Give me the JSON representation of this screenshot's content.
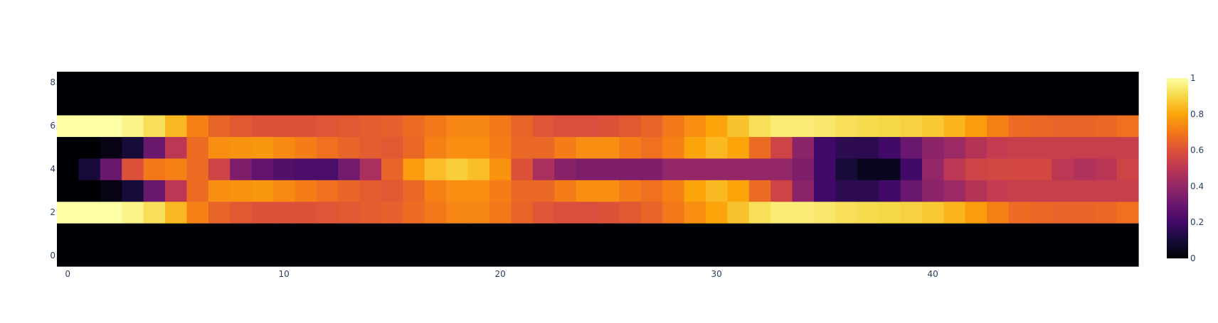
{
  "chart_data": {
    "type": "heatmap",
    "title": "",
    "xlabel": "",
    "ylabel": "",
    "x_range": [
      -0.5,
      49.5
    ],
    "y_range": [
      -0.5,
      8.5
    ],
    "x_ticks": [
      0,
      10,
      20,
      30,
      40
    ],
    "y_ticks": [
      0,
      2,
      4,
      6,
      8
    ],
    "colorscale": "inferno",
    "zmin": 0,
    "zmax": 1,
    "colorbar_ticks": [
      0,
      0.2,
      0.4,
      0.6,
      0.8,
      1
    ],
    "colorbar_stops": [
      [
        0,
        "#000004"
      ],
      [
        0.1,
        "#160b39"
      ],
      [
        0.2,
        "#420a68"
      ],
      [
        0.3,
        "#6a176e"
      ],
      [
        0.4,
        "#932667"
      ],
      [
        0.5,
        "#bc3754"
      ],
      [
        0.6,
        "#dd513a"
      ],
      [
        0.7,
        "#f37819"
      ],
      [
        0.8,
        "#fca50a"
      ],
      [
        0.9,
        "#f6d746"
      ],
      [
        1,
        "#fcffa4"
      ]
    ],
    "rows": [
      {
        "y": 0,
        "values": [
          0,
          0,
          0,
          0,
          0,
          0,
          0,
          0,
          0,
          0,
          0,
          0,
          0,
          0,
          0,
          0,
          0,
          0,
          0,
          0,
          0,
          0,
          0,
          0,
          0,
          0,
          0,
          0,
          0,
          0,
          0,
          0,
          0,
          0,
          0,
          0,
          0,
          0,
          0,
          0,
          0,
          0,
          0,
          0,
          0,
          0,
          0,
          0,
          0,
          0
        ]
      },
      {
        "y": 1,
        "values": [
          0,
          0,
          0,
          0,
          0,
          0,
          0,
          0,
          0,
          0,
          0,
          0,
          0,
          0,
          0,
          0,
          0,
          0,
          0,
          0,
          0,
          0,
          0,
          0,
          0,
          0,
          0,
          0,
          0,
          0,
          0,
          0,
          0,
          0,
          0,
          0,
          0,
          0,
          0,
          0,
          0,
          0,
          0,
          0,
          0,
          0,
          0,
          0,
          0,
          0
        ]
      },
      {
        "y": 2,
        "values": [
          1,
          1,
          1,
          0.97,
          0.92,
          0.84,
          0.72,
          0.65,
          0.62,
          0.6,
          0.6,
          0.6,
          0.61,
          0.62,
          0.63,
          0.64,
          0.67,
          0.7,
          0.73,
          0.73,
          0.7,
          0.65,
          0.61,
          0.59,
          0.59,
          0.6,
          0.62,
          0.65,
          0.7,
          0.75,
          0.8,
          0.86,
          0.92,
          0.95,
          0.95,
          0.94,
          0.92,
          0.91,
          0.9,
          0.89,
          0.87,
          0.83,
          0.78,
          0.72,
          0.67,
          0.66,
          0.65,
          0.65,
          0.66,
          0.68
        ]
      },
      {
        "y": 3,
        "values": [
          0,
          0,
          0.03,
          0.1,
          0.3,
          0.5,
          0.67,
          0.75,
          0.76,
          0.77,
          0.74,
          0.71,
          0.68,
          0.65,
          0.63,
          0.62,
          0.66,
          0.72,
          0.75,
          0.75,
          0.71,
          0.66,
          0.66,
          0.71,
          0.75,
          0.75,
          0.71,
          0.68,
          0.72,
          0.8,
          0.84,
          0.8,
          0.67,
          0.55,
          0.38,
          0.2,
          0.15,
          0.15,
          0.2,
          0.3,
          0.38,
          0.42,
          0.48,
          0.52,
          0.53,
          0.53,
          0.53,
          0.53,
          0.53,
          0.53
        ]
      },
      {
        "y": 4,
        "values": [
          0,
          0.1,
          0.3,
          0.6,
          0.7,
          0.72,
          0.67,
          0.55,
          0.35,
          0.28,
          0.24,
          0.22,
          0.22,
          0.32,
          0.45,
          0.65,
          0.78,
          0.85,
          0.88,
          0.85,
          0.76,
          0.6,
          0.45,
          0.37,
          0.35,
          0.35,
          0.35,
          0.35,
          0.4,
          0.4,
          0.4,
          0.4,
          0.4,
          0.4,
          0.35,
          0.2,
          0.1,
          0.05,
          0.05,
          0.2,
          0.4,
          0.5,
          0.55,
          0.56,
          0.57,
          0.57,
          0.5,
          0.47,
          0.49,
          0.55
        ]
      },
      {
        "y": 5,
        "values": [
          0,
          0,
          0.03,
          0.1,
          0.3,
          0.5,
          0.67,
          0.75,
          0.76,
          0.77,
          0.74,
          0.71,
          0.68,
          0.65,
          0.63,
          0.62,
          0.66,
          0.72,
          0.75,
          0.75,
          0.71,
          0.66,
          0.66,
          0.71,
          0.75,
          0.75,
          0.71,
          0.68,
          0.72,
          0.8,
          0.84,
          0.8,
          0.67,
          0.55,
          0.38,
          0.2,
          0.15,
          0.15,
          0.2,
          0.3,
          0.38,
          0.42,
          0.48,
          0.52,
          0.53,
          0.53,
          0.53,
          0.53,
          0.53,
          0.53
        ]
      },
      {
        "y": 6,
        "values": [
          1,
          1,
          1,
          0.97,
          0.92,
          0.84,
          0.72,
          0.65,
          0.62,
          0.6,
          0.6,
          0.6,
          0.61,
          0.62,
          0.63,
          0.64,
          0.67,
          0.7,
          0.73,
          0.73,
          0.7,
          0.65,
          0.61,
          0.59,
          0.59,
          0.6,
          0.62,
          0.65,
          0.7,
          0.75,
          0.8,
          0.86,
          0.92,
          0.95,
          0.95,
          0.94,
          0.92,
          0.91,
          0.9,
          0.89,
          0.87,
          0.83,
          0.78,
          0.72,
          0.67,
          0.66,
          0.65,
          0.65,
          0.66,
          0.68
        ]
      },
      {
        "y": 7,
        "values": [
          0,
          0,
          0,
          0,
          0,
          0,
          0,
          0,
          0,
          0,
          0,
          0,
          0,
          0,
          0,
          0,
          0,
          0,
          0,
          0,
          0,
          0,
          0,
          0,
          0,
          0,
          0,
          0,
          0,
          0,
          0,
          0,
          0,
          0,
          0,
          0,
          0,
          0,
          0,
          0,
          0,
          0,
          0,
          0,
          0,
          0,
          0,
          0,
          0,
          0
        ]
      },
      {
        "y": 8,
        "values": [
          0,
          0,
          0,
          0,
          0,
          0,
          0,
          0,
          0,
          0,
          0,
          0,
          0,
          0,
          0,
          0,
          0,
          0,
          0,
          0,
          0,
          0,
          0,
          0,
          0,
          0,
          0,
          0,
          0,
          0,
          0,
          0,
          0,
          0,
          0,
          0,
          0,
          0,
          0,
          0,
          0,
          0,
          0,
          0,
          0,
          0,
          0,
          0,
          0,
          0
        ]
      }
    ]
  }
}
